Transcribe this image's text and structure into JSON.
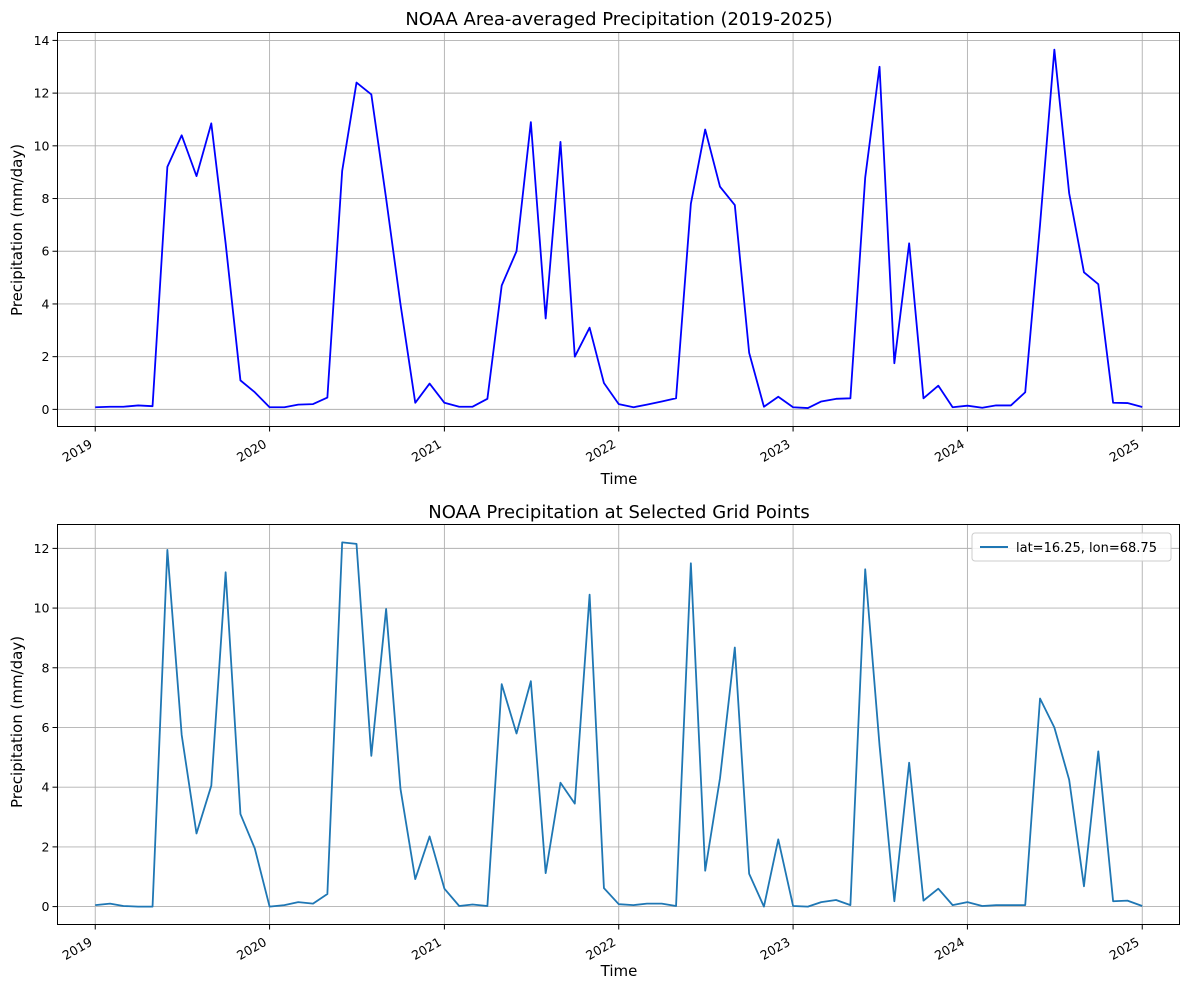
{
  "chart_data": [
    {
      "type": "line",
      "title": "NOAA Area-averaged Precipitation (2019-2025)",
      "xlabel": "Time",
      "ylabel": "Precipitation (mm/day)",
      "xlim": [
        "2018-10-14",
        "2025-03-20"
      ],
      "ylim": [
        -0.65,
        14.3
      ],
      "x_ticks": [
        "2019",
        "2020",
        "2021",
        "2022",
        "2023",
        "2024",
        "2025"
      ],
      "y_ticks": [
        0,
        2,
        4,
        6,
        8,
        10,
        12,
        14
      ],
      "grid": true,
      "color": "#0000ff",
      "start": "2019-01",
      "values": [
        0.08,
        0.1,
        0.1,
        0.15,
        0.12,
        9.2,
        10.4,
        8.85,
        10.85,
        6.3,
        1.1,
        0.65,
        0.08,
        0.08,
        0.18,
        0.2,
        0.45,
        9.05,
        12.4,
        11.95,
        8.0,
        4.0,
        0.25,
        0.98,
        0.25,
        0.1,
        0.1,
        0.4,
        4.7,
        6.0,
        10.9,
        3.45,
        10.15,
        2.0,
        3.1,
        1.0,
        0.2,
        0.08,
        0.18,
        0.3,
        0.42,
        7.8,
        10.62,
        8.45,
        7.75,
        2.15,
        0.1,
        0.48,
        0.08,
        0.05,
        0.3,
        0.4,
        0.42,
        8.8,
        13.0,
        1.75,
        6.3,
        0.42,
        0.9,
        0.08,
        0.14,
        0.06,
        0.15,
        0.15,
        0.65,
        7.0,
        13.65,
        8.2,
        5.2,
        4.75,
        0.25,
        0.24,
        0.09
      ]
    },
    {
      "type": "line",
      "title": "NOAA Precipitation at Selected Grid Points",
      "xlabel": "Time",
      "ylabel": "Precipitation (mm/day)",
      "xlim": [
        "2018-10-14",
        "2025-03-20"
      ],
      "ylim": [
        -0.6,
        12.8
      ],
      "x_ticks": [
        "2019",
        "2020",
        "2021",
        "2022",
        "2023",
        "2024",
        "2025"
      ],
      "y_ticks": [
        0,
        2,
        4,
        6,
        8,
        10,
        12
      ],
      "grid": true,
      "legend": "top-right",
      "series": [
        {
          "name": "lat=16.25, lon=68.75",
          "color": "#1f77b4",
          "start": "2019-01",
          "values": [
            0.05,
            0.1,
            0.02,
            0.0,
            0.0,
            11.95,
            5.75,
            2.45,
            4.05,
            11.2,
            3.1,
            1.95,
            0.0,
            0.05,
            0.15,
            0.1,
            0.42,
            12.2,
            12.15,
            5.05,
            9.97,
            3.95,
            0.92,
            2.35,
            0.6,
            0.02,
            0.07,
            0.02,
            7.45,
            5.8,
            7.55,
            1.12,
            4.15,
            3.45,
            10.45,
            0.62,
            0.08,
            0.05,
            0.1,
            0.1,
            0.02,
            11.5,
            1.2,
            4.3,
            8.68,
            1.1,
            0.0,
            2.25,
            0.02,
            0.0,
            0.15,
            0.22,
            0.05,
            11.3,
            5.4,
            0.18,
            4.82,
            0.2,
            0.6,
            0.05,
            0.15,
            0.02,
            0.05,
            0.05,
            0.05,
            6.97,
            6.0,
            4.25,
            0.68,
            5.2,
            0.18,
            0.2,
            0.02
          ]
        }
      ]
    }
  ]
}
